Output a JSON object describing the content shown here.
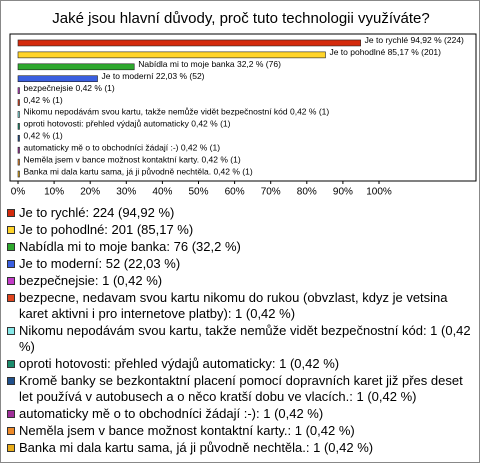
{
  "chart_data": {
    "type": "bar",
    "orientation": "horizontal",
    "title": "Jaké jsou hlavní důvody, proč tuto technologii využíváte?",
    "categories": [
      "Je to rychlé: 224 (94,92 %)",
      "Je to pohodlné: 201 (85,17 %)",
      "Nabídla mi to moje banka: 76 (32,2 %)",
      "Je to moderní: 52 (22,03 %)",
      "bezpečnejsie: 1 (0,42 %)",
      "bezpecne, nedavam svou kartu nikomu do rukou (obvzlast, kdyz je vetsina karet aktivni i pro internetove platby): 1 (0,42 %)",
      "Nikomu nepodávám svou kartu, takže nemůže vidět bezpečnostní kód: 1 (0,42 %)",
      "oproti hotovosti: přehled výdajů automaticky: 1 (0,42 %)",
      "Kromě banky se bezkontaktní placení pomocí dopravních karet již přes deset let používá v autobusech a o něco kratší dobu ve vlacích.: 1 (0,42 %)",
      "automaticky mě o to obchodníci žádají :-): 1 (0,42 %)",
      "Neměla jsem v bance možnost kontaktní karty.: 1 (0,42 %)",
      "Banka mi dala kartu sama, já ji původně nechtěla.: 1 (0,42 %)"
    ],
    "values": [
      94.92,
      85.17,
      32.2,
      22.03,
      0.42,
      0.42,
      0.42,
      0.42,
      0.42,
      0.42,
      0.42,
      0.42
    ],
    "value_labels": [
      "Je to rychlé 94,92 % (224)",
      "Je to pohodlné 85,17 % (201)",
      "Nabídla mi to moje banka 32,2 % (76)",
      "Je to moderní 22,03 % (52)",
      "bezpečnejsie 0,42 % (1)",
      "0,42 % (1)",
      "Nikomu nepodávám svou kartu, takže nemůže vidět bezpečnostní kód 0,42 % (1)",
      "oproti hotovosti: přehled výdajů automaticky 0,42 % (1)",
      "0,42 % (1)",
      "automaticky mě o to obchodníci žádají :-) 0,42 % (1)",
      "Neměla jsem v bance možnost kontaktní karty. 0,42 % (1)",
      "Banka mi dala kartu sama, já ji původně nechtěla. 0,42 % (1)"
    ],
    "colors": [
      "#d42a0c",
      "#ffd42a",
      "#2ea82e",
      "#3a5fe0",
      "#c33cc8",
      "#e0441e",
      "#86e8e8",
      "#1b8c6c",
      "#20508c",
      "#a0309a",
      "#ee8a2a",
      "#e8ac1a"
    ],
    "xlim": [
      0,
      100
    ],
    "xticks": [
      {
        "value": 0,
        "label": "0%"
      },
      {
        "value": 10,
        "label": "10%"
      },
      {
        "value": 20,
        "label": "20%"
      },
      {
        "value": 30,
        "label": "30%"
      },
      {
        "value": 40,
        "label": "40%"
      },
      {
        "value": 50,
        "label": "50%"
      },
      {
        "value": 60,
        "label": "60%"
      },
      {
        "value": 70,
        "label": "70%"
      },
      {
        "value": 80,
        "label": "80%"
      },
      {
        "value": 90,
        "label": "90%"
      },
      {
        "value": 100,
        "label": "100%"
      }
    ]
  }
}
